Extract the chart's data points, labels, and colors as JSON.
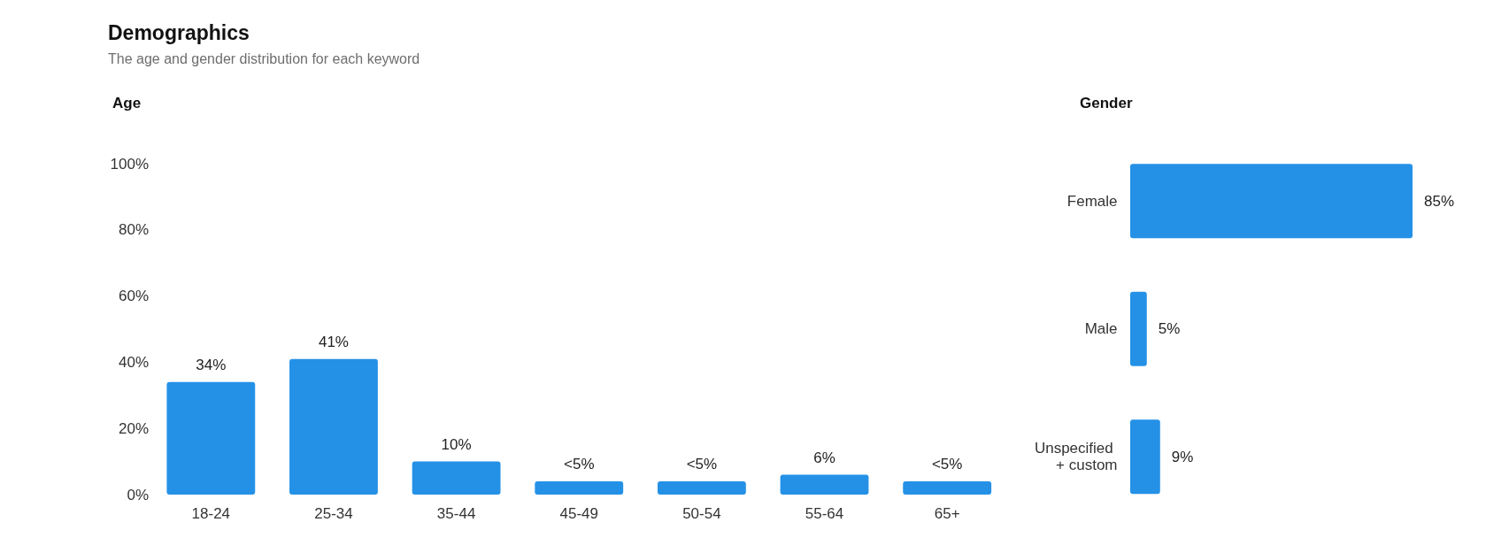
{
  "chart_data": [
    {
      "type": "other",
      "title": "Demographics",
      "subtitle": "The age and gender distribution for each keyword"
    },
    {
      "type": "bar",
      "title": "Age",
      "categories": [
        "18-24",
        "25-34",
        "35-44",
        "45-49",
        "50-54",
        "55-64",
        "65+"
      ],
      "values": [
        34,
        41,
        10,
        4,
        4,
        6,
        4
      ],
      "color": "#2491e7",
      "value_labels": [
        "34%",
        "41%",
        "10%",
        "<5%",
        "<5%",
        "6%",
        "<5%"
      ],
      "ylim": [
        0,
        100
      ],
      "yticks": [
        {
          "value": 0,
          "label": "0%"
        },
        {
          "value": 20,
          "label": "20%"
        },
        {
          "value": 40,
          "label": "40%"
        },
        {
          "value": 60,
          "label": "60%"
        },
        {
          "value": 80,
          "label": "80%"
        },
        {
          "value": 100,
          "label": "100%"
        }
      ]
    },
    {
      "type": "bar",
      "orientation": "horizontal",
      "title": "Gender",
      "categories": [
        "Female",
        "Male",
        "Unspecified + custom"
      ],
      "values": [
        85,
        5,
        9
      ],
      "color": "#2491e7",
      "value_labels": [
        "85%",
        "5%",
        "9%"
      ],
      "tick_labels": "y"
    }
  ]
}
